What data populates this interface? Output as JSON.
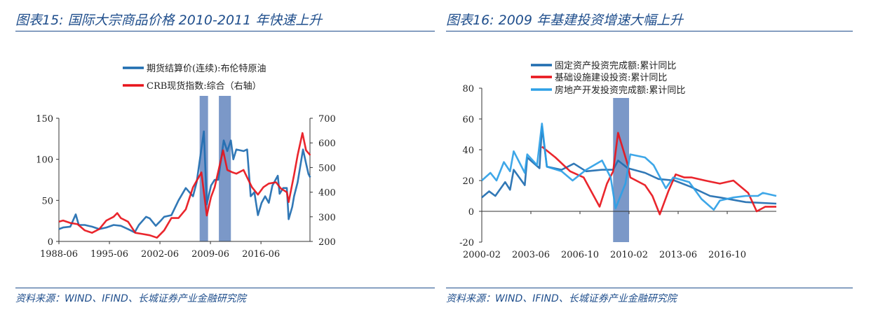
{
  "left": {
    "title": "图表15:  国际大宗商品价格 2010-2011 年快速上升",
    "source": "资料来源：WIND、IFIND、长城证券产业金融研究院"
  },
  "right": {
    "title": "图表16:  2009 年基建投资增速大幅上升",
    "source": "资料来源：WIND、IFIND、长城证券产业金融研究院"
  },
  "chart_data": [
    {
      "type": "line",
      "x_ticks": [
        "1988-06",
        "1995-06",
        "2002-06",
        "2009-06",
        "2016-06"
      ],
      "y_ticks": [
        0,
        50,
        100,
        150
      ],
      "y2_ticks": [
        200,
        300,
        400,
        500,
        600,
        700
      ],
      "ylim": [
        0,
        150
      ],
      "y2lim": [
        200,
        700
      ],
      "grid": false,
      "legend": "top-center",
      "shaded_periods": [
        [
          "2007-12",
          "2009-02"
        ],
        [
          "2010-08",
          "2012-04"
        ]
      ],
      "series": [
        {
          "name": "期货结算价(连续):布伦特原油",
          "axis": "left",
          "color": "#1f6db0",
          "points": [
            [
              "1988-06",
              15
            ],
            [
              "1989-01",
              17
            ],
            [
              "1990-01",
              18
            ],
            [
              "1990-10",
              33
            ],
            [
              "1991-03",
              20
            ],
            [
              "1992-01",
              20
            ],
            [
              "1993-01",
              18
            ],
            [
              "1994-01",
              15
            ],
            [
              "1995-01",
              17
            ],
            [
              "1996-01",
              20
            ],
            [
              "1997-01",
              19
            ],
            [
              "1998-01",
              15
            ],
            [
              "1998-12",
              11
            ],
            [
              "1999-07",
              20
            ],
            [
              "2000-07",
              30
            ],
            [
              "2001-01",
              28
            ],
            [
              "2001-11",
              19
            ],
            [
              "2002-07",
              25
            ],
            [
              "2003-01",
              30
            ],
            [
              "2004-01",
              32
            ],
            [
              "2005-01",
              50
            ],
            [
              "2006-01",
              65
            ],
            [
              "2007-01",
              55
            ],
            [
              "2007-07",
              72
            ],
            [
              "2008-07",
              134
            ],
            [
              "2008-12",
              45
            ],
            [
              "2009-07",
              68
            ],
            [
              "2010-01",
              75
            ],
            [
              "2010-07",
              75
            ],
            [
              "2011-04",
              123
            ],
            [
              "2011-10",
              110
            ],
            [
              "2012-04",
              123
            ],
            [
              "2012-08",
              100
            ],
            [
              "2013-01",
              112
            ],
            [
              "2014-01",
              110
            ],
            [
              "2014-07",
              112
            ],
            [
              "2015-01",
              55
            ],
            [
              "2015-07",
              60
            ],
            [
              "2016-01",
              32
            ],
            [
              "2016-07",
              47
            ],
            [
              "2017-01",
              55
            ],
            [
              "2017-07",
              47
            ],
            [
              "2018-01",
              68
            ],
            [
              "2018-10",
              80
            ],
            [
              "2019-01",
              58
            ],
            [
              "2019-07",
              65
            ],
            [
              "2020-01",
              65
            ],
            [
              "2020-04",
              27
            ],
            [
              "2020-10",
              42
            ],
            [
              "2021-01",
              55
            ],
            [
              "2021-07",
              72
            ],
            [
              "2022-04",
              112
            ],
            [
              "2022-09",
              95
            ],
            [
              "2023-01",
              82
            ],
            [
              "2023-04",
              78
            ]
          ]
        },
        {
          "name": "CRB现货指数:综合（右轴）",
          "axis": "right",
          "color": "#e8141b",
          "points": [
            [
              "1988-06",
              280
            ],
            [
              "1989-01",
              285
            ],
            [
              "1990-01",
              275
            ],
            [
              "1991-01",
              270
            ],
            [
              "1992-01",
              245
            ],
            [
              "1993-01",
              235
            ],
            [
              "1994-01",
              250
            ],
            [
              "1995-01",
              285
            ],
            [
              "1996-01",
              300
            ],
            [
              "1996-07",
              315
            ],
            [
              "1997-01",
              295
            ],
            [
              "1998-01",
              280
            ],
            [
              "1999-01",
              235
            ],
            [
              "2000-01",
              230
            ],
            [
              "2001-01",
              225
            ],
            [
              "2002-01",
              215
            ],
            [
              "2003-01",
              245
            ],
            [
              "2004-01",
              295
            ],
            [
              "2005-01",
              295
            ],
            [
              "2006-01",
              330
            ],
            [
              "2007-01",
              420
            ],
            [
              "2008-03",
              480
            ],
            [
              "2008-12",
              305
            ],
            [
              "2009-07",
              380
            ],
            [
              "2010-01",
              420
            ],
            [
              "2011-03",
              570
            ],
            [
              "2011-10",
              490
            ],
            [
              "2012-07",
              480
            ],
            [
              "2013-01",
              475
            ],
            [
              "2014-01",
              490
            ],
            [
              "2014-07",
              460
            ],
            [
              "2015-03",
              420
            ],
            [
              "2016-01",
              390
            ],
            [
              "2016-10",
              420
            ],
            [
              "2017-07",
              435
            ],
            [
              "2018-07",
              440
            ],
            [
              "2019-03",
              415
            ],
            [
              "2020-01",
              400
            ],
            [
              "2020-04",
              360
            ],
            [
              "2021-01",
              470
            ],
            [
              "2021-07",
              550
            ],
            [
              "2022-03",
              640
            ],
            [
              "2022-09",
              570
            ],
            [
              "2023-04",
              550
            ]
          ]
        }
      ]
    },
    {
      "type": "line",
      "x_ticks": [
        "2000-02",
        "2003-06",
        "2006-10",
        "2010-02",
        "2013-06",
        "2016-10"
      ],
      "y_ticks": [
        -20,
        0,
        20,
        40,
        60,
        80
      ],
      "ylim": [
        -20,
        80
      ],
      "grid": false,
      "legend": "top-center",
      "shaded_periods": [
        [
          "2009-01",
          "2010-02"
        ]
      ],
      "series": [
        {
          "name": "固定资产投资完成额:累计同比",
          "color": "#1f6db0",
          "points": [
            [
              "2000-02",
              9
            ],
            [
              "2000-08",
              13
            ],
            [
              "2001-01",
              10
            ],
            [
              "2001-09",
              19
            ],
            [
              "2002-01",
              14
            ],
            [
              "2002-04",
              27
            ],
            [
              "2003-01",
              17
            ],
            [
              "2003-03",
              35
            ],
            [
              "2004-01",
              28
            ],
            [
              "2004-03",
              55
            ],
            [
              "2004-07",
              29
            ],
            [
              "2005-07",
              27
            ],
            [
              "2006-05",
              31
            ],
            [
              "2007-03",
              26
            ],
            [
              "2008-04",
              27
            ],
            [
              "2009-01",
              27
            ],
            [
              "2009-05",
              33
            ],
            [
              "2010-01",
              28
            ],
            [
              "2011-03",
              25
            ],
            [
              "2012-02",
              21
            ],
            [
              "2013-03",
              20
            ],
            [
              "2014-04",
              16
            ],
            [
              "2015-08",
              10
            ],
            [
              "2016-04",
              9
            ],
            [
              "2018-01",
              6
            ],
            [
              "2020-02",
              5
            ]
          ]
        },
        {
          "name": "基础设施建设投资:累计同比",
          "color": "#e8141b",
          "points": [
            [
              "2004-03",
              42
            ],
            [
              "2005-02",
              35
            ],
            [
              "2006-02",
              26
            ],
            [
              "2007-01",
              22
            ],
            [
              "2008-02",
              3
            ],
            [
              "2008-08",
              18
            ],
            [
              "2009-01",
              26
            ],
            [
              "2009-05",
              51
            ],
            [
              "2010-01",
              30
            ],
            [
              "2010-03",
              22
            ],
            [
              "2011-03",
              17
            ],
            [
              "2011-09",
              10
            ],
            [
              "2012-03",
              -2
            ],
            [
              "2012-10",
              13
            ],
            [
              "2013-04",
              24
            ],
            [
              "2013-11",
              22
            ],
            [
              "2014-05",
              22
            ],
            [
              "2015-04",
              20
            ],
            [
              "2016-04",
              18
            ],
            [
              "2017-03",
              20
            ],
            [
              "2018-03",
              12
            ],
            [
              "2018-10",
              0
            ],
            [
              "2019-05",
              3
            ],
            [
              "2020-02",
              3
            ]
          ]
        },
        {
          "name": "房地产开发投资完成额:累计同比",
          "color": "#2ea0e6",
          "points": [
            [
              "2000-02",
              20
            ],
            [
              "2000-09",
              25
            ],
            [
              "2001-02",
              20
            ],
            [
              "2001-08",
              32
            ],
            [
              "2002-01",
              26
            ],
            [
              "2002-04",
              39
            ],
            [
              "2003-01",
              25
            ],
            [
              "2003-03",
              37
            ],
            [
              "2003-11",
              30
            ],
            [
              "2004-03",
              57
            ],
            [
              "2004-07",
              29
            ],
            [
              "2005-07",
              26
            ],
            [
              "2006-04",
              20
            ],
            [
              "2007-03",
              27
            ],
            [
              "2008-04",
              33
            ],
            [
              "2008-11",
              22
            ],
            [
              "2009-03",
              2
            ],
            [
              "2009-11",
              18
            ],
            [
              "2010-03",
              37
            ],
            [
              "2011-03",
              35
            ],
            [
              "2011-10",
              30
            ],
            [
              "2012-08",
              15
            ],
            [
              "2013-02",
              22
            ],
            [
              "2014-03",
              19
            ],
            [
              "2015-01",
              8
            ],
            [
              "2015-11",
              1
            ],
            [
              "2016-04",
              7
            ],
            [
              "2017-03",
              9
            ],
            [
              "2018-01",
              10
            ],
            [
              "2018-11",
              10
            ],
            [
              "2019-03",
              12
            ],
            [
              "2020-02",
              10
            ]
          ]
        }
      ]
    }
  ]
}
